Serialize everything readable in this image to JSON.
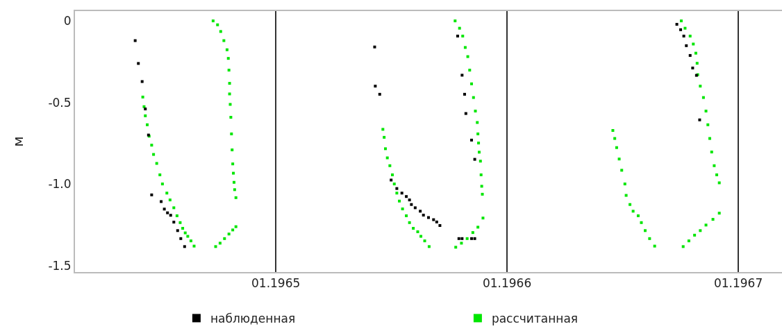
{
  "chart_data": {
    "type": "scatter",
    "ylabel": "м",
    "xlim": [
      "1964-02-19",
      "1967-03-11"
    ],
    "ylim": [
      -1.54,
      0.06
    ],
    "xticks": [
      {
        "value": "1965-01-01",
        "label": "01.1965"
      },
      {
        "value": "1966-01-01",
        "label": "01.1966"
      },
      {
        "value": "1967-01-01",
        "label": "01.1967"
      }
    ],
    "yticks": [
      0,
      -0.5,
      {
        "value": -1,
        "label": "-1.0"
      },
      -1.5
    ],
    "grid": "x",
    "legend": "bottom",
    "marker": "square",
    "series": [
      {
        "name": "наблюденная",
        "color": "#000000",
        "x": [
          "1964-05-24",
          "1964-05-29",
          "1964-06-04",
          "1964-06-09",
          "1964-06-14",
          "1964-06-19",
          "1964-07-04",
          "1964-07-09",
          "1964-07-14",
          "1964-07-19",
          "1964-07-24",
          "1964-07-30",
          "1964-08-04",
          "1964-08-10",
          "1965-06-06",
          "1965-06-07",
          "1965-06-14",
          "1965-07-02",
          "1965-07-11",
          "1965-07-19",
          "1965-07-26",
          "1965-07-31",
          "1965-08-03",
          "1965-08-09",
          "1965-08-17",
          "1965-08-22",
          "1965-08-30",
          "1965-09-07",
          "1965-09-12",
          "1965-09-17",
          "1965-10-15",
          "1965-10-22",
          "1965-10-26",
          "1965-10-28",
          "1965-11-06",
          "1965-11-11",
          "1965-10-17",
          "1965-10-22",
          "1965-11-06",
          "1965-11-11",
          "1966-09-26",
          "1966-10-02",
          "1966-10-07",
          "1966-10-11",
          "1966-10-17",
          "1966-10-21",
          "1966-10-27",
          "1966-11-01"
        ],
        "values": [
          -0.121,
          -0.261,
          -0.372,
          -0.54,
          -0.7,
          -1.067,
          -1.108,
          -1.154,
          -1.177,
          -1.192,
          -1.234,
          -1.286,
          -1.335,
          -1.384,
          -0.16,
          -0.4,
          -0.45,
          -0.976,
          -1.028,
          -1.056,
          -1.077,
          -1.098,
          -1.126,
          -1.146,
          -1.167,
          -1.191,
          -1.206,
          -1.219,
          -1.233,
          -1.255,
          -0.093,
          -0.333,
          -0.45,
          -0.568,
          -0.731,
          -0.849,
          -1.335,
          -1.335,
          -1.335,
          -1.335,
          -0.021,
          -0.054,
          -0.093,
          -0.152,
          -0.212,
          -0.289,
          -0.334,
          -0.607
        ]
      },
      {
        "name": "рассчитанная",
        "color": "#00e600",
        "x": [
          "1964-06-05",
          "1964-06-07",
          "1964-06-09",
          "1964-06-12",
          "1964-06-15",
          "1964-06-19",
          "1964-06-22",
          "1964-06-27",
          "1964-07-02",
          "1964-07-06",
          "1964-07-13",
          "1964-07-18",
          "1964-07-24",
          "1964-07-29",
          "1964-08-03",
          "1964-08-07",
          "1964-08-11",
          "1964-08-15",
          "1964-08-20",
          "1964-08-25",
          "1964-09-24",
          "1964-10-01",
          "1964-10-06",
          "1964-10-11",
          "1964-10-16",
          "1964-10-18",
          "1964-10-19",
          "1964-10-20",
          "1964-10-20",
          "1964-10-21",
          "1964-10-22",
          "1964-10-23",
          "1964-10-24",
          "1964-10-25",
          "1964-10-26",
          "1964-10-27",
          "1964-10-28",
          "1964-10-30",
          "1964-09-28",
          "1964-10-05",
          "1964-10-12",
          "1964-10-19",
          "1964-10-25",
          "1964-10-30",
          "1965-06-19",
          "1965-06-21",
          "1965-06-23",
          "1965-06-26",
          "1965-06-30",
          "1965-07-04",
          "1965-07-07",
          "1965-07-11",
          "1965-07-15",
          "1965-07-20",
          "1965-07-26",
          "1965-07-31",
          "1965-08-06",
          "1965-08-13",
          "1965-08-18",
          "1965-08-24",
          "1965-08-31",
          "1965-10-11",
          "1965-10-18",
          "1965-10-23",
          "1965-10-27",
          "1965-10-31",
          "1965-11-03",
          "1965-11-06",
          "1965-11-09",
          "1965-11-12",
          "1965-11-15",
          "1965-11-16",
          "1965-11-17",
          "1965-11-18",
          "1965-11-20",
          "1965-11-21",
          "1965-11-22",
          "1965-11-23",
          "1965-10-12",
          "1965-10-21",
          "1965-10-30",
          "1965-11-08",
          "1965-11-16",
          "1965-11-24",
          "1966-06-17",
          "1966-06-20",
          "1966-06-23",
          "1966-06-27",
          "1966-07-01",
          "1966-07-06",
          "1966-07-08",
          "1966-07-14",
          "1966-07-19",
          "1966-07-27",
          "1966-08-01",
          "1966-08-07",
          "1966-08-14",
          "1966-08-22",
          "1966-10-03",
          "1966-10-09",
          "1966-10-17",
          "1966-10-22",
          "1966-10-26",
          "1966-10-28",
          "1966-10-29",
          "1966-11-02",
          "1966-11-07",
          "1966-11-11",
          "1966-11-14",
          "1966-11-17",
          "1966-11-20",
          "1966-11-24",
          "1966-11-28",
          "1966-12-02",
          "1966-10-06",
          "1966-10-15",
          "1966-10-24",
          "1966-11-02",
          "1966-11-11",
          "1966-11-22",
          "1966-12-02"
        ],
        "values": [
          -0.467,
          -0.526,
          -0.582,
          -0.637,
          -0.707,
          -0.762,
          -0.819,
          -0.874,
          -0.944,
          -1.0,
          -1.056,
          -1.098,
          -1.146,
          -1.195,
          -1.237,
          -1.272,
          -1.3,
          -1.321,
          -1.349,
          -1.381,
          0.0,
          -0.024,
          -0.065,
          -0.121,
          -0.177,
          -0.23,
          -0.302,
          -0.383,
          -0.448,
          -0.512,
          -0.591,
          -0.693,
          -0.791,
          -0.877,
          -0.934,
          -0.99,
          -1.035,
          -1.084,
          -1.384,
          -1.363,
          -1.335,
          -1.307,
          -1.282,
          -1.262,
          -0.665,
          -0.714,
          -0.784,
          -0.84,
          -0.888,
          -0.944,
          -1.0,
          -1.056,
          -1.105,
          -1.153,
          -1.195,
          -1.237,
          -1.272,
          -1.293,
          -1.321,
          -1.349,
          -1.384,
          0.0,
          -0.045,
          -0.093,
          -0.163,
          -0.219,
          -0.302,
          -0.386,
          -0.47,
          -0.553,
          -0.623,
          -0.693,
          -0.749,
          -0.805,
          -0.86,
          -0.944,
          -1.014,
          -1.063,
          -1.388,
          -1.363,
          -1.335,
          -1.298,
          -1.265,
          -1.209,
          -0.672,
          -0.721,
          -0.777,
          -0.847,
          -0.916,
          -1.0,
          -1.07,
          -1.126,
          -1.167,
          -1.195,
          -1.237,
          -1.286,
          -1.335,
          -1.381,
          0.0,
          -0.045,
          -0.093,
          -0.142,
          -0.198,
          -0.26,
          -0.33,
          -0.4,
          -0.47,
          -0.553,
          -0.637,
          -0.721,
          -0.804,
          -0.888,
          -0.944,
          -0.993,
          -1.384,
          -1.349,
          -1.314,
          -1.286,
          -1.252,
          -1.217,
          -1.179
        ]
      }
    ]
  }
}
